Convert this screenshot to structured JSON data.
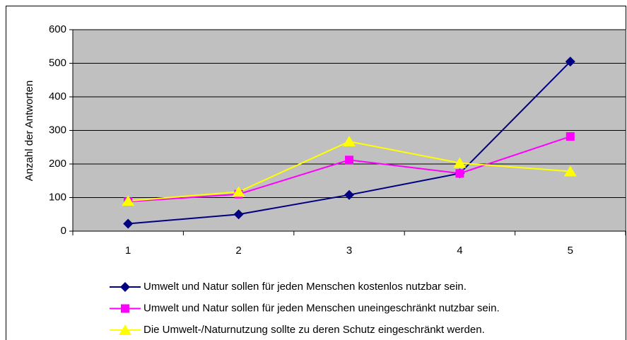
{
  "chart_data": {
    "type": "line",
    "ylabel": "Anzahl der Antworten",
    "categories": [
      "1",
      "2",
      "3",
      "4",
      "5"
    ],
    "series": [
      {
        "name": "Umwelt und Natur sollen für jeden Menschen kostenlos nutzbar sein.",
        "color": "#000080",
        "marker": "diamond",
        "values": [
          22,
          50,
          108,
          172,
          505
        ]
      },
      {
        "name": "Umwelt und Natur sollen für jeden Menschen uneingeschränkt nutzbar sein.",
        "color": "#ff00ff",
        "marker": "square",
        "values": [
          88,
          110,
          212,
          172,
          282
        ]
      },
      {
        "name": "Die Umwelt-/Naturnutzung sollte zu deren Schutz eingeschränkt werden.",
        "color": "#ffff00",
        "marker": "triangle",
        "values": [
          90,
          117,
          267,
          203,
          178
        ]
      }
    ],
    "ylim": [
      0,
      600
    ],
    "yticks": [
      0,
      100,
      200,
      300,
      400,
      500,
      600
    ],
    "grid": true,
    "plot_background": "#c0c0c0",
    "legend": "bottom"
  }
}
